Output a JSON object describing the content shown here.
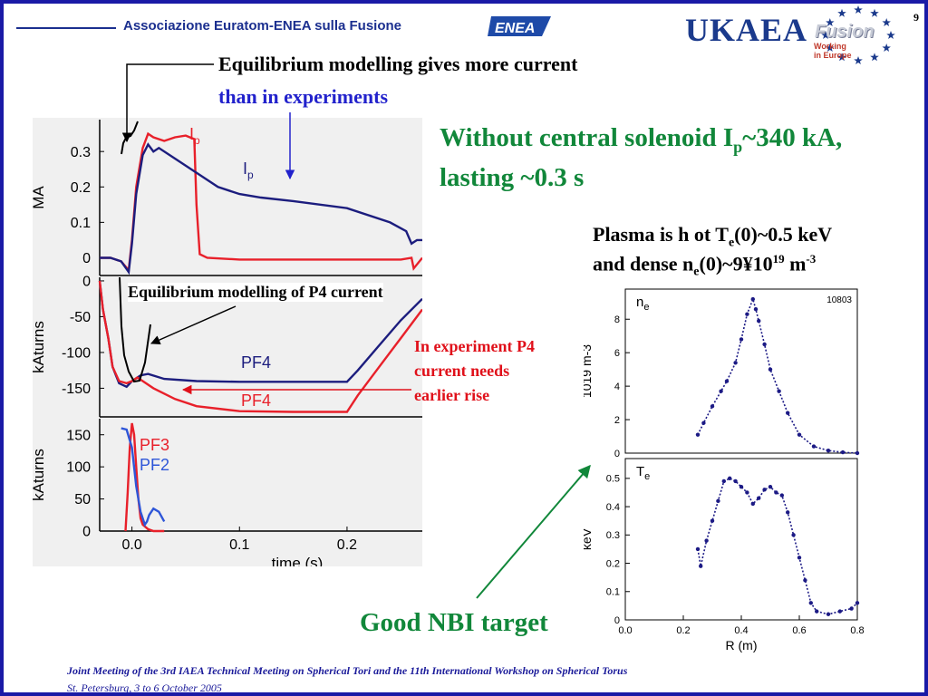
{
  "header": {
    "association": "Associazione Euratom-ENEA sulla Fusione",
    "enea_logo": "ENEA",
    "ukaea": "UKAEA",
    "fusion": "Fusion",
    "working": "Working",
    "in_europe": "in Europe",
    "page_number": "9"
  },
  "annotations": {
    "eq_more_line1": "Equilibrium modelling gives more current",
    "eq_more_line2": "than in experiments",
    "headline_part1": "Without central solenoid I",
    "headline_sub": "p",
    "headline_part2": "~340 kA,",
    "headline_line2": "lasting ~0.3 s",
    "plasma_a": "Plasma is h ot T",
    "plasma_a_sub": "e",
    "plasma_a_end": "(0)~0.5 keV",
    "plasma_b": "and dense n",
    "plasma_b_sub": "e",
    "plasma_b_mid": "(0)~9¥10",
    "plasma_b_sup": "19",
    "plasma_b_unit": " m",
    "plasma_b_unit_sup": "-3",
    "eq_p4": "Equilibrium modelling of P4 current",
    "exp_p4_line1": "In experiment P4",
    "exp_p4_line2": "current needs",
    "exp_p4_line3": "earlier rise",
    "nbi": "Good NBI target"
  },
  "footer": {
    "line1": "Joint Meeting of the 3rd IAEA Technical Meeting on Spherical Tori and the 11th International Workshop on Spherical Torus",
    "line2": "St. Petersburg, 3 to 6 October 2005"
  },
  "chart_data": [
    {
      "type": "line",
      "xlim": [
        -0.03,
        0.27
      ],
      "ylim": [
        -0.05,
        0.39
      ],
      "ylabel": "MA",
      "yticks": [
        0,
        0.1,
        0.2,
        0.3
      ],
      "ytick_labels": [
        "0",
        "0.1",
        "0.2",
        "0.3"
      ],
      "series": [
        {
          "name": "Ip",
          "color": "#e8202a",
          "x": [
            -0.03,
            -0.02,
            -0.01,
            -0.003,
            0.0,
            0.004,
            0.01,
            0.015,
            0.02,
            0.03,
            0.04,
            0.05,
            0.058,
            0.06,
            0.063,
            0.07,
            0.1,
            0.15,
            0.2,
            0.25,
            0.26,
            0.262,
            0.27
          ],
          "y": [
            0.0,
            0.0,
            -0.01,
            -0.035,
            0.05,
            0.2,
            0.31,
            0.35,
            0.34,
            0.33,
            0.34,
            0.345,
            0.335,
            0.15,
            0.01,
            0.0,
            -0.005,
            -0.005,
            -0.005,
            -0.005,
            0.0,
            -0.03,
            0.0
          ]
        },
        {
          "name": "Ip",
          "color": "#1c1d7e",
          "x": [
            -0.03,
            -0.02,
            -0.01,
            -0.003,
            0.0,
            0.004,
            0.01,
            0.015,
            0.02,
            0.025,
            0.04,
            0.06,
            0.08,
            0.1,
            0.12,
            0.15,
            0.2,
            0.24,
            0.255,
            0.26,
            0.265,
            0.27
          ],
          "y": [
            0.0,
            0.0,
            -0.01,
            -0.04,
            0.04,
            0.18,
            0.29,
            0.32,
            0.3,
            0.31,
            0.28,
            0.24,
            0.2,
            0.18,
            0.17,
            0.16,
            0.14,
            0.1,
            0.075,
            0.04,
            0.05,
            0.05
          ]
        }
      ]
    },
    {
      "type": "line",
      "xlim": [
        -0.03,
        0.27
      ],
      "ylim": [
        -190,
        5
      ],
      "ylabel": "kAturns",
      "yticks": [
        0,
        -50,
        -100,
        -150
      ],
      "ytick_labels": [
        "0",
        "-50",
        "-100",
        "-150"
      ],
      "series": [
        {
          "name": "PF4",
          "color": "#1c1d7e",
          "x": [
            -0.03,
            -0.027,
            -0.022,
            -0.018,
            -0.012,
            -0.005,
            0.0,
            0.008,
            0.015,
            0.03,
            0.06,
            0.1,
            0.15,
            0.2,
            0.21,
            0.23,
            0.25,
            0.27
          ],
          "y": [
            0,
            -40,
            -80,
            -120,
            -143,
            -148,
            -140,
            -132,
            -130,
            -137,
            -140,
            -141,
            -141,
            -141,
            -125,
            -90,
            -55,
            -25
          ]
        },
        {
          "name": "PF4",
          "color": "#e8202a",
          "x": [
            -0.03,
            -0.027,
            -0.022,
            -0.018,
            -0.012,
            -0.005,
            0.0,
            0.005,
            0.01,
            0.02,
            0.04,
            0.06,
            0.1,
            0.15,
            0.2,
            0.21,
            0.23,
            0.25,
            0.27
          ],
          "y": [
            0,
            -40,
            -80,
            -120,
            -140,
            -143,
            -140,
            -135,
            -140,
            -150,
            -165,
            -175,
            -182,
            -183,
            -183,
            -160,
            -120,
            -80,
            -40
          ]
        }
      ]
    },
    {
      "type": "line",
      "xlim": [
        -0.03,
        0.27
      ],
      "ylim": [
        0,
        175
      ],
      "xlabel": "time (s)",
      "ylabel": "kAturns",
      "xticks": [
        0.0,
        0.1,
        0.2
      ],
      "xtick_labels": [
        "0.0",
        "0.1",
        "0.2"
      ],
      "yticks": [
        0,
        50,
        100,
        150
      ],
      "ytick_labels": [
        "0",
        "50",
        "100",
        "150"
      ],
      "series": [
        {
          "name": "PF3",
          "color": "#e8202a",
          "x": [
            -0.006,
            -0.004,
            -0.002,
            0.0,
            0.002,
            0.004,
            0.006,
            0.008,
            0.01,
            0.015,
            0.02,
            0.03
          ],
          "y": [
            0,
            60,
            130,
            168,
            150,
            100,
            50,
            20,
            10,
            3,
            0,
            0
          ]
        },
        {
          "name": "PF2",
          "color": "#2e56d8",
          "x": [
            -0.01,
            -0.005,
            0.0,
            0.004,
            0.008,
            0.012,
            0.014,
            0.016,
            0.02,
            0.025,
            0.03
          ],
          "y": [
            160,
            158,
            130,
            70,
            30,
            10,
            15,
            25,
            35,
            30,
            15
          ]
        }
      ]
    },
    {
      "type": "scatter",
      "xlim": [
        0.0,
        0.8
      ],
      "ylim": [
        0,
        9.8
      ],
      "ylabel": "1019 m-3",
      "panel_label": "ne",
      "panel_label_sub": "e",
      "shot_label": "10803",
      "yticks": [
        0,
        2,
        4,
        6,
        8
      ],
      "ytick_labels": [
        "0",
        "2",
        "4",
        "6",
        "8"
      ],
      "series": [
        {
          "name": "ne",
          "color": "#1c1a85",
          "x": [
            0.25,
            0.27,
            0.3,
            0.33,
            0.35,
            0.38,
            0.4,
            0.42,
            0.44,
            0.45,
            0.46,
            0.48,
            0.5,
            0.53,
            0.56,
            0.6,
            0.65,
            0.7,
            0.75,
            0.8
          ],
          "y": [
            1.1,
            1.8,
            2.8,
            3.7,
            4.3,
            5.4,
            6.8,
            8.3,
            9.2,
            8.6,
            7.9,
            6.5,
            5.0,
            3.7,
            2.4,
            1.1,
            0.4,
            0.15,
            0.05,
            0.0
          ]
        }
      ]
    },
    {
      "type": "scatter",
      "xlim": [
        0.0,
        0.8
      ],
      "ylim": [
        0,
        0.57
      ],
      "xlabel": "R (m)",
      "ylabel": "keV",
      "panel_label": "Te",
      "panel_label_sub": "e",
      "xticks": [
        0.0,
        0.2,
        0.4,
        0.6,
        0.8
      ],
      "xtick_labels": [
        "0.0",
        "0.2",
        "0.4",
        "0.6",
        "0.8"
      ],
      "yticks": [
        0,
        0.1,
        0.2,
        0.3,
        0.4,
        0.5
      ],
      "ytick_labels": [
        "0",
        "0.1",
        "0.2",
        "0.3",
        "0.4",
        "0.5"
      ],
      "series": [
        {
          "name": "Te",
          "color": "#1c1a85",
          "x": [
            0.25,
            0.26,
            0.28,
            0.3,
            0.32,
            0.34,
            0.36,
            0.38,
            0.4,
            0.42,
            0.44,
            0.46,
            0.48,
            0.5,
            0.52,
            0.54,
            0.56,
            0.58,
            0.6,
            0.62,
            0.64,
            0.66,
            0.7,
            0.74,
            0.78,
            0.8
          ],
          "y": [
            0.25,
            0.19,
            0.28,
            0.35,
            0.42,
            0.49,
            0.5,
            0.49,
            0.47,
            0.45,
            0.41,
            0.43,
            0.46,
            0.47,
            0.45,
            0.44,
            0.38,
            0.3,
            0.22,
            0.14,
            0.06,
            0.03,
            0.02,
            0.03,
            0.04,
            0.06
          ]
        }
      ]
    }
  ]
}
